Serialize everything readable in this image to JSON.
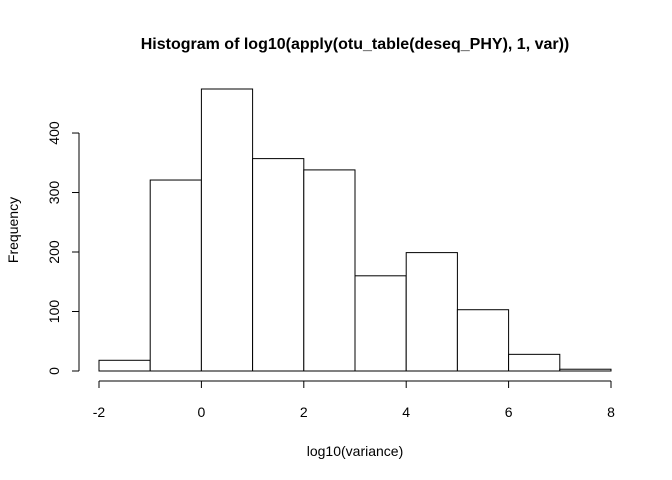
{
  "chart_data": {
    "type": "bar",
    "title": "Histogram of log10(apply(otu_table(deseq_PHY), 1, var))",
    "xlabel": "log10(variance)",
    "ylabel": "Frequency",
    "bin_edges": [
      -2,
      -1,
      0,
      1,
      2,
      3,
      4,
      5,
      6,
      7,
      8
    ],
    "values": [
      18,
      321,
      474,
      357,
      338,
      160,
      199,
      103,
      28,
      3
    ],
    "xlim": [
      -2,
      8
    ],
    "ylim": [
      0,
      474
    ],
    "x_ticks": [
      -2,
      0,
      2,
      4,
      6,
      8
    ],
    "x_tick_labels": [
      "-2",
      "0",
      "2",
      "4",
      "6",
      "8"
    ],
    "y_ticks": [
      0,
      100,
      200,
      300,
      400
    ],
    "y_tick_labels": [
      "0",
      "100",
      "200",
      "300",
      "400"
    ],
    "grid": false,
    "bar_fill": "#ffffff",
    "bar_stroke": "#000000"
  }
}
